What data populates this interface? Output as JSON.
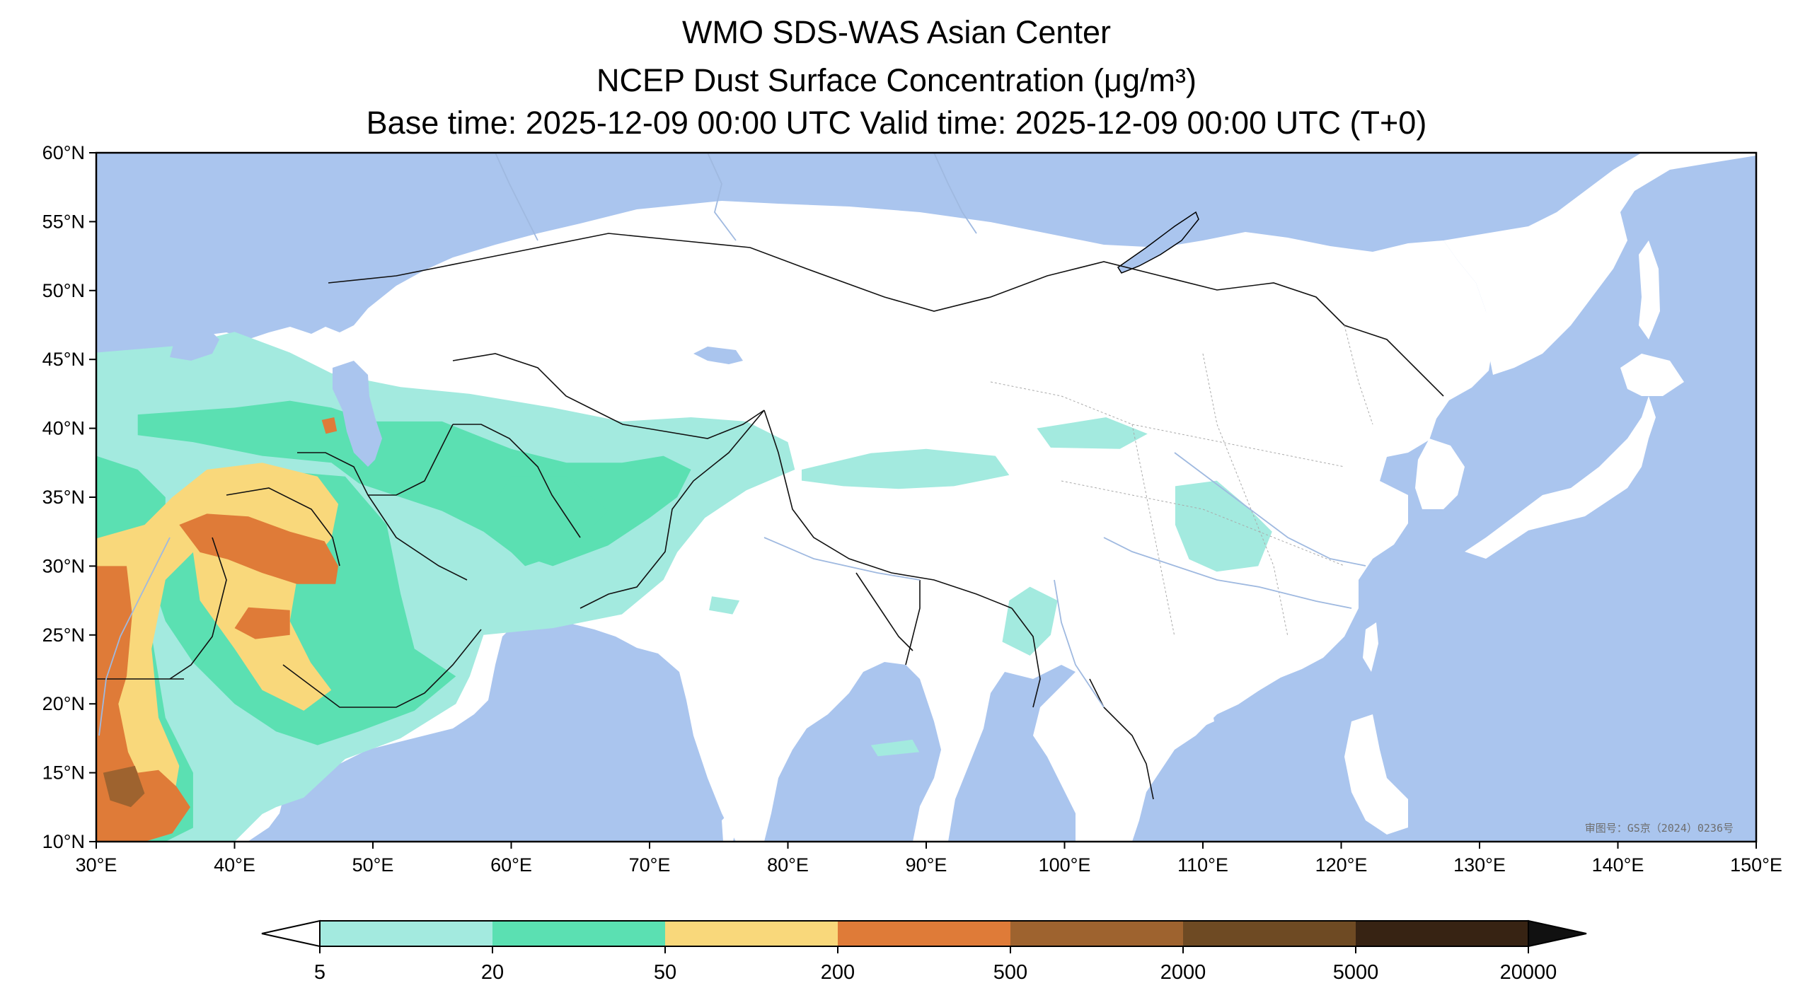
{
  "title": {
    "line1": "WMO SDS-WAS Asian Center",
    "line2": "NCEP Dust Surface Concentration (μg/m³)",
    "line3": "Base time: 2025-12-09 00:00 UTC Valid time: 2025-12-09 00:00 UTC (T+0)"
  },
  "map": {
    "projection": "PlateCarree",
    "lon_range": [
      30,
      150
    ],
    "lat_range": [
      10,
      60
    ],
    "lon_ticks": [
      "30°E",
      "40°E",
      "50°E",
      "60°E",
      "70°E",
      "80°E",
      "90°E",
      "100°E",
      "110°E",
      "120°E",
      "130°E",
      "140°E",
      "150°E"
    ],
    "lat_ticks": [
      "10°N",
      "15°N",
      "20°N",
      "25°N",
      "30°N",
      "35°N",
      "40°N",
      "45°N",
      "50°N",
      "55°N",
      "60°N"
    ],
    "ocean_color": "#aac5ee",
    "land_color": "#ffffff",
    "approval_note": "审图号：GS京（2024）0236号",
    "dust_regions": [
      {
        "level": 0,
        "lonlat": [
          [
            30,
            45.5
          ],
          [
            36,
            46
          ],
          [
            40,
            47
          ],
          [
            44,
            45.5
          ],
          [
            47,
            44
          ],
          [
            52,
            43
          ],
          [
            57,
            42.5
          ],
          [
            63,
            41.5
          ],
          [
            68,
            40.5
          ],
          [
            73,
            40.8
          ],
          [
            77,
            40.5
          ],
          [
            80,
            39
          ],
          [
            80.5,
            37
          ],
          [
            77,
            35.5
          ],
          [
            74,
            33.5
          ],
          [
            72,
            31
          ],
          [
            71,
            29
          ],
          [
            68,
            26.5
          ],
          [
            63,
            25.5
          ],
          [
            58,
            25
          ],
          [
            57,
            22
          ],
          [
            56,
            20
          ],
          [
            52,
            17.5
          ],
          [
            48,
            16
          ],
          [
            45,
            13.2
          ],
          [
            43,
            12.5
          ],
          [
            42,
            12
          ],
          [
            40,
            10
          ],
          [
            30,
            10
          ]
        ]
      },
      {
        "level": 0,
        "lonlat": [
          [
            81,
            37
          ],
          [
            86,
            38.2
          ],
          [
            90,
            38.5
          ],
          [
            95,
            38
          ],
          [
            96,
            36.6
          ],
          [
            92,
            35.8
          ],
          [
            88,
            35.6
          ],
          [
            84,
            35.8
          ],
          [
            81,
            36.2
          ]
        ]
      },
      {
        "level": 0,
        "lonlat": [
          [
            98,
            40
          ],
          [
            103,
            40.8
          ],
          [
            106,
            39.6
          ],
          [
            104,
            38.5
          ],
          [
            99,
            38.6
          ]
        ]
      },
      {
        "level": 0,
        "lonlat": [
          [
            108,
            35.8
          ],
          [
            111,
            36.2
          ],
          [
            113,
            34.5
          ],
          [
            115,
            32.5
          ],
          [
            114,
            30
          ],
          [
            111,
            29.6
          ],
          [
            109,
            30.5
          ],
          [
            108,
            33
          ]
        ]
      },
      {
        "level": 0,
        "lonlat": [
          [
            97.5,
            28.5
          ],
          [
            99.5,
            27.5
          ],
          [
            99,
            25
          ],
          [
            97.5,
            23.5
          ],
          [
            95.5,
            24.5
          ],
          [
            96,
            27.5
          ]
        ]
      },
      {
        "level": 0,
        "lonlat": [
          [
            74.5,
            27.8
          ],
          [
            76.5,
            27.5
          ],
          [
            76,
            26.5
          ],
          [
            74.3,
            26.8
          ]
        ]
      },
      {
        "level": 0,
        "lonlat": [
          [
            86,
            17
          ],
          [
            89,
            17.4
          ],
          [
            89.5,
            16.5
          ],
          [
            86.5,
            16.2
          ]
        ]
      },
      {
        "level": 1,
        "lonlat": [
          [
            33,
            41
          ],
          [
            40,
            41.5
          ],
          [
            44,
            42
          ],
          [
            47,
            41.5
          ],
          [
            50,
            40.5
          ],
          [
            55,
            40.5
          ],
          [
            60,
            38.5
          ],
          [
            64,
            37.5
          ],
          [
            68,
            37.5
          ],
          [
            71,
            38
          ],
          [
            73,
            37
          ],
          [
            72,
            35
          ],
          [
            70,
            33.5
          ],
          [
            67,
            31.5
          ],
          [
            63,
            30
          ],
          [
            60,
            31
          ],
          [
            58,
            32.5
          ],
          [
            55,
            34
          ],
          [
            52,
            35
          ],
          [
            49,
            36
          ],
          [
            47,
            37.5
          ],
          [
            42,
            38
          ],
          [
            37,
            39
          ],
          [
            33,
            39.5
          ]
        ]
      },
      {
        "level": 1,
        "lonlat": [
          [
            60,
            36.5
          ],
          [
            64,
            36.5
          ],
          [
            67,
            34
          ],
          [
            64,
            31
          ],
          [
            61,
            30
          ],
          [
            59,
            32
          ],
          [
            59,
            35
          ]
        ]
      },
      {
        "level": 1,
        "lonlat": [
          [
            42,
            37
          ],
          [
            48,
            36.5
          ],
          [
            51,
            33
          ],
          [
            52,
            28
          ],
          [
            53,
            24
          ],
          [
            56,
            22
          ],
          [
            53,
            19.5
          ],
          [
            49,
            18
          ],
          [
            46,
            17
          ],
          [
            43,
            18
          ],
          [
            40,
            20
          ],
          [
            37,
            23
          ],
          [
            35,
            26
          ],
          [
            34,
            29
          ],
          [
            35,
            31
          ],
          [
            37.5,
            33
          ],
          [
            40,
            35.5
          ]
        ]
      },
      {
        "level": 1,
        "lonlat": [
          [
            30,
            38
          ],
          [
            33,
            37
          ],
          [
            35,
            35
          ],
          [
            35,
            31
          ],
          [
            34,
            25
          ],
          [
            35,
            19
          ],
          [
            37,
            15
          ],
          [
            37,
            11
          ],
          [
            35,
            10
          ],
          [
            30,
            10
          ]
        ]
      },
      {
        "level": 2,
        "lonlat": [
          [
            30,
            32
          ],
          [
            33.5,
            33
          ],
          [
            35.5,
            35
          ],
          [
            38,
            37
          ],
          [
            42,
            37.5
          ],
          [
            46,
            36.5
          ],
          [
            47.5,
            34.5
          ],
          [
            47,
            32
          ],
          [
            44.5,
            29
          ],
          [
            44,
            26
          ],
          [
            45.5,
            23
          ],
          [
            47,
            21
          ],
          [
            45,
            19.5
          ],
          [
            42,
            21
          ],
          [
            40,
            24
          ],
          [
            37.5,
            27.5
          ],
          [
            37,
            31
          ],
          [
            35,
            29
          ],
          [
            34,
            24
          ],
          [
            34.5,
            19
          ],
          [
            36,
            15.5
          ],
          [
            35.5,
            12.5
          ],
          [
            33,
            11
          ],
          [
            30,
            11
          ]
        ]
      },
      {
        "level": 3,
        "lonlat": [
          [
            36,
            33
          ],
          [
            38,
            33.8
          ],
          [
            41,
            33.6
          ],
          [
            44,
            32.5
          ],
          [
            46.5,
            31.8
          ],
          [
            47.5,
            30
          ],
          [
            47.3,
            28.7
          ],
          [
            44.5,
            28.7
          ],
          [
            42,
            29.5
          ],
          [
            39.5,
            30.5
          ],
          [
            37.5,
            31
          ]
        ]
      },
      {
        "level": 3,
        "lonlat": [
          [
            41,
            27
          ],
          [
            44,
            26.8
          ],
          [
            44,
            25
          ],
          [
            41.5,
            24.7
          ],
          [
            40,
            25.5
          ]
        ]
      },
      {
        "level": 3,
        "lonlat": [
          [
            30,
            30
          ],
          [
            32.2,
            30
          ],
          [
            32.6,
            26.5
          ],
          [
            32.2,
            22
          ],
          [
            31.6,
            20
          ],
          [
            32.3,
            16.5
          ],
          [
            33,
            15
          ],
          [
            34.5,
            15.2
          ],
          [
            35.8,
            14
          ],
          [
            36.8,
            12.5
          ],
          [
            35.5,
            10.6
          ],
          [
            33.5,
            10
          ],
          [
            30,
            10
          ]
        ]
      },
      {
        "level": 3,
        "lonlat": [
          [
            46.3,
            40.6
          ],
          [
            47.2,
            40.8
          ],
          [
            47.4,
            39.8
          ],
          [
            46.6,
            39.6
          ]
        ]
      },
      {
        "level": 4,
        "lonlat": [
          [
            30.5,
            15
          ],
          [
            32.8,
            15.5
          ],
          [
            33.5,
            13.5
          ],
          [
            32.5,
            12.5
          ],
          [
            31,
            13
          ]
        ]
      }
    ]
  },
  "colorbar": {
    "levels": [
      "5",
      "20",
      "50",
      "200",
      "500",
      "2000",
      "5000",
      "20000"
    ],
    "colors": [
      "#a3eadf",
      "#5be0b2",
      "#f9d87b",
      "#df7b38",
      "#9e632f",
      "#6e4a23",
      "#372313"
    ],
    "extend": "both",
    "under_color": "#ffffff",
    "over_color": "#111111"
  }
}
